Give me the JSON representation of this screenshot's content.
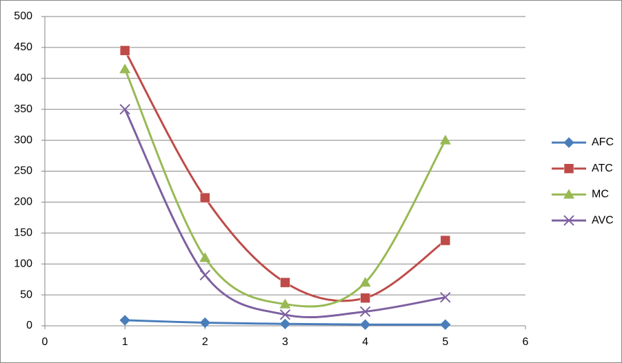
{
  "chart_data": {
    "type": "line",
    "x": [
      1,
      2,
      3,
      4,
      5
    ],
    "series": [
      {
        "name": "AFC",
        "color": "#4a7ebb",
        "marker": "diamond",
        "values": [
          9,
          5,
          3,
          2,
          2
        ]
      },
      {
        "name": "ATC",
        "color": "#be4b48",
        "marker": "square",
        "values": [
          445,
          207,
          70,
          45,
          138
        ]
      },
      {
        "name": "MC",
        "color": "#98b954",
        "marker": "triangle",
        "values": [
          415,
          110,
          35,
          70,
          300
        ]
      },
      {
        "name": "AVC",
        "color": "#7d60a0",
        "marker": "x",
        "values": [
          350,
          82,
          18,
          23,
          46
        ]
      }
    ],
    "xlim": [
      0,
      6
    ],
    "xticks": [
      0,
      1,
      2,
      3,
      4,
      5,
      6
    ],
    "ylim": [
      0,
      500
    ],
    "yticks": [
      0,
      50,
      100,
      150,
      200,
      250,
      300,
      350,
      400,
      450,
      500
    ],
    "grid": true,
    "smooth": true,
    "legend": "right"
  }
}
